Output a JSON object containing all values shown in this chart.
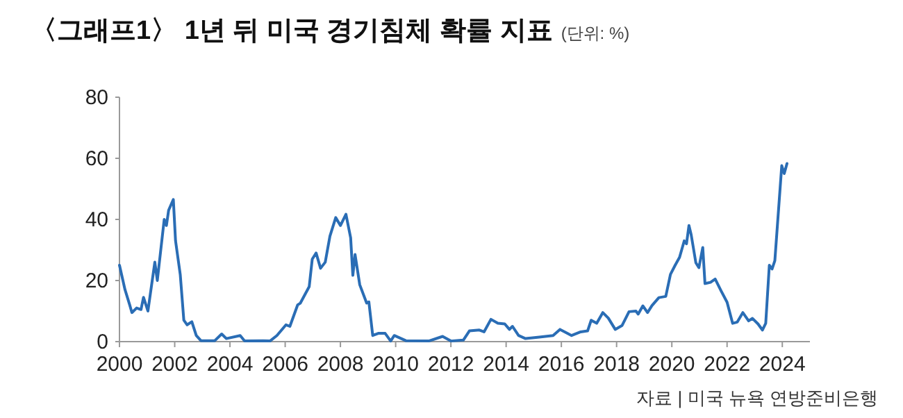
{
  "chart_data": {
    "type": "line",
    "title": "〈그래프1〉 1년 뒤 미국 경기침체 확률 지표",
    "subtitle": "(단위: %)",
    "annotations": [
      "자료 | 미국 뉴욕 연방준비은행"
    ],
    "xlim": [
      2000,
      2025
    ],
    "xticks": [
      2000,
      2002,
      2004,
      2006,
      2008,
      2010,
      2012,
      2014,
      2016,
      2018,
      2020,
      2022,
      2024
    ],
    "ylim": [
      0,
      80
    ],
    "yticks": [
      0,
      20,
      40,
      60,
      80
    ],
    "grid": false,
    "marker": "none",
    "line_style": "solid",
    "series": [
      {
        "color": "#2a6db5",
        "x": [
          2000.0,
          2000.2,
          2000.37,
          2000.45,
          2000.62,
          2000.78,
          2000.87,
          2001.03,
          2001.28,
          2001.37,
          2001.62,
          2001.7,
          2001.78,
          2001.95,
          2002.03,
          2002.2,
          2002.33,
          2002.45,
          2002.62,
          2002.78,
          2002.95,
          2003.45,
          2003.7,
          2003.87,
          2004.37,
          2004.53,
          2005.2,
          2005.45,
          2005.7,
          2006.03,
          2006.17,
          2006.45,
          2006.55,
          2006.87,
          2006.98,
          2007.12,
          2007.28,
          2007.45,
          2007.62,
          2007.83,
          2008.0,
          2008.2,
          2008.37,
          2008.45,
          2008.53,
          2008.7,
          2008.95,
          2009.03,
          2009.17,
          2009.37,
          2009.62,
          2009.82,
          2009.95,
          2010.37,
          2011.2,
          2011.7,
          2012.0,
          2012.45,
          2012.67,
          2013.03,
          2013.2,
          2013.45,
          2013.7,
          2013.95,
          2014.12,
          2014.23,
          2014.45,
          2014.7,
          2015.2,
          2015.7,
          2015.95,
          2016.12,
          2016.37,
          2016.7,
          2016.95,
          2017.08,
          2017.28,
          2017.5,
          2017.7,
          2017.95,
          2018.2,
          2018.45,
          2018.7,
          2018.78,
          2018.95,
          2019.12,
          2019.28,
          2019.53,
          2019.78,
          2019.95,
          2020.12,
          2020.28,
          2020.45,
          2020.53,
          2020.62,
          2020.7,
          2020.87,
          2020.98,
          2021.12,
          2021.2,
          2021.4,
          2021.57,
          2021.78,
          2022.0,
          2022.2,
          2022.37,
          2022.57,
          2022.78,
          2022.92,
          2023.12,
          2023.28,
          2023.4,
          2023.53,
          2023.63,
          2023.73,
          2023.98,
          2024.07,
          2024.17
        ],
        "values": [
          25,
          17,
          12,
          9.5,
          11,
          10.5,
          14.5,
          10,
          26,
          20,
          40,
          38,
          43,
          46.5,
          33,
          22,
          7,
          5.5,
          6.5,
          2,
          0.3,
          0.3,
          2.5,
          1,
          2,
          0.2,
          0.3,
          0.2,
          2,
          5.5,
          5,
          12,
          12.6,
          18,
          27,
          29,
          24,
          26,
          34.5,
          40.6,
          38,
          41.7,
          34,
          21.7,
          28.5,
          18.6,
          12.6,
          13,
          2,
          2.7,
          2.7,
          0.2,
          2,
          0.3,
          0.2,
          1.7,
          0.2,
          0.5,
          3.5,
          3.8,
          3.2,
          7.3,
          6,
          5.8,
          4,
          5,
          2,
          1,
          1.5,
          2,
          4,
          3.2,
          2,
          3.2,
          3.5,
          7,
          6,
          9.5,
          7.7,
          4,
          5.3,
          9.8,
          10,
          9,
          11.7,
          9.5,
          11.8,
          14.4,
          14.8,
          22,
          25,
          27.6,
          33,
          32,
          38,
          35,
          25.8,
          24.2,
          30.8,
          19,
          19.4,
          20.5,
          16.7,
          12.9,
          6,
          6.4,
          9.5,
          6.8,
          7.6,
          5.8,
          3.8,
          6,
          25,
          23.8,
          26.5,
          57.6,
          55,
          58.3
        ]
      }
    ]
  }
}
